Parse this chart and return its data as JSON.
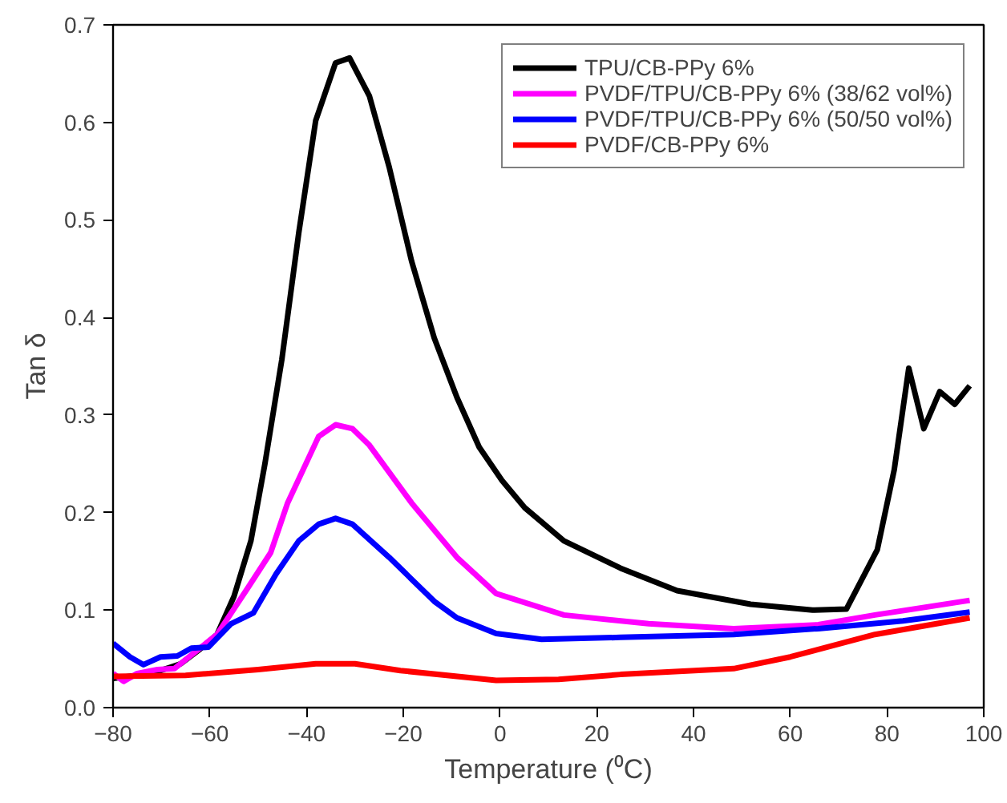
{
  "chart_data": {
    "type": "line",
    "xlabel": "Temperature (⁰C)",
    "ylabel": "Tan δ",
    "xlim": [
      -80,
      100
    ],
    "ylim": [
      0,
      0.7
    ],
    "xticks": [
      -80,
      -60,
      -40,
      -20,
      0,
      20,
      40,
      60,
      80,
      100
    ],
    "yticks": [
      {
        "value": 0,
        "label": "0.0"
      },
      0.1,
      0.2,
      0.3,
      0.4,
      0.5,
      0.6,
      0.7
    ],
    "grid": false,
    "legend": "top right",
    "marker": "none",
    "line_style": "solid",
    "series": [
      {
        "name": "TPU/CB-PPy 6%",
        "color": "#000000",
        "x": [
          -80,
          -72,
          -66,
          -62,
          -58.5,
          -55,
          -51.5,
          -48.6,
          -45.1,
          -41.6,
          -38.1,
          -34,
          -31.1,
          -27,
          -22.9,
          -18.3,
          -13.6,
          -8.9,
          -4.3,
          0.4,
          5.1,
          13.2,
          24.9,
          36.6,
          51.8,
          64.6,
          71.6,
          78,
          81.5,
          84.5,
          87.6,
          90.9,
          94,
          97.1
        ],
        "values": [
          0.03,
          0.035,
          0.045,
          0.06,
          0.075,
          0.114,
          0.171,
          0.25,
          0.357,
          0.487,
          0.602,
          0.661,
          0.666,
          0.627,
          0.554,
          0.458,
          0.379,
          0.318,
          0.267,
          0.233,
          0.205,
          0.171,
          0.143,
          0.12,
          0.106,
          0.1,
          0.101,
          0.162,
          0.244,
          0.348,
          0.286,
          0.324,
          0.311,
          0.33
        ]
      },
      {
        "name": "PVDF/TPU/CB-PPy 6% (38/62 vol%)",
        "color": "#ff00ff",
        "x": [
          -80,
          -77.8,
          -75,
          -70.8,
          -67.3,
          -64.3,
          -58.5,
          -52.1,
          -47.4,
          -43.9,
          -37.5,
          -34,
          -30.5,
          -27,
          -18.3,
          -8.9,
          -0.8,
          13.2,
          30.7,
          48.3,
          65.8,
          77.5,
          97.1
        ],
        "values": [
          0.035,
          0.027,
          0.035,
          0.039,
          0.04,
          0.052,
          0.075,
          0.123,
          0.159,
          0.21,
          0.278,
          0.29,
          0.286,
          0.269,
          0.21,
          0.154,
          0.117,
          0.095,
          0.086,
          0.081,
          0.085,
          0.095,
          0.11
        ]
      },
      {
        "name": "PVDF/TPU/CB-PPy 6% (50/50 vol%)",
        "color": "#0000ff",
        "x": [
          -80,
          -76.5,
          -73.7,
          -70.2,
          -66.7,
          -63.8,
          -60.3,
          -55.6,
          -51,
          -46.3,
          -41.6,
          -37.5,
          -34,
          -30.5,
          -22.9,
          -13.6,
          -8.9,
          -0.8,
          8.6,
          24.9,
          48.3,
          65.8,
          83.3,
          97.1
        ],
        "values": [
          0.066,
          0.052,
          0.044,
          0.052,
          0.053,
          0.061,
          0.062,
          0.086,
          0.097,
          0.137,
          0.171,
          0.188,
          0.194,
          0.188,
          0.154,
          0.109,
          0.092,
          0.076,
          0.07,
          0.072,
          0.075,
          0.081,
          0.089,
          0.098
        ]
      },
      {
        "name": "PVDF/CB-PPy 6%",
        "color": "#ff0000",
        "x": [
          -80,
          -65,
          -50,
          -38.1,
          -30,
          -20.6,
          -0.8,
          12.1,
          24.9,
          48.3,
          60,
          77.5,
          97.1
        ],
        "values": [
          0.032,
          0.033,
          0.039,
          0.045,
          0.045,
          0.038,
          0.028,
          0.029,
          0.034,
          0.04,
          0.052,
          0.075,
          0.092
        ]
      }
    ]
  }
}
